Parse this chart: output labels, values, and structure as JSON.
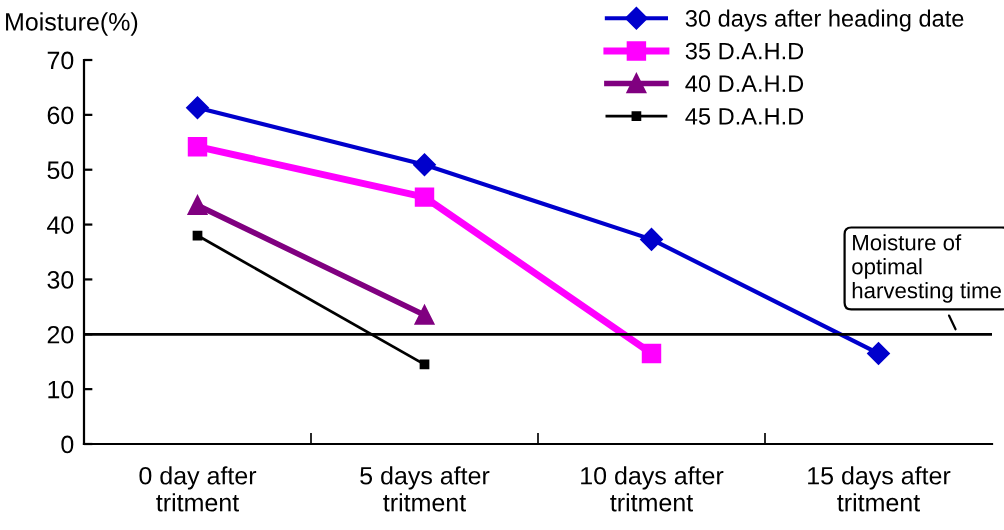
{
  "chart_data": {
    "type": "line",
    "ylabel": "Moisture(%)",
    "categories": [
      "0 day after\ntritment",
      "5 days after\ntritment",
      "10 days after\ntritment",
      "15 days after\ntritment"
    ],
    "series": [
      {
        "name": "30 days after heading date",
        "color": "#0000cc",
        "marker": "diamond",
        "values": [
          61.3,
          50.9,
          37.3,
          16.5
        ]
      },
      {
        "name": "35 D.A.H.D",
        "color": "#ff00ff",
        "marker": "square",
        "values": [
          54.2,
          45,
          16.5,
          null
        ]
      },
      {
        "name": "40 D.A.H.D",
        "color": "#800080",
        "marker": "triangle",
        "values": [
          43.5,
          23.5,
          null,
          null
        ]
      },
      {
        "name": "45 D.A.H.D",
        "color": "#000000",
        "marker": "square",
        "values": [
          38,
          14.5,
          null,
          null
        ]
      }
    ],
    "ylim": [
      0,
      70
    ],
    "yticks": [
      0,
      10,
      20,
      30,
      40,
      50,
      60,
      70
    ],
    "ref_lines": [
      {
        "axis": "y",
        "value": 20,
        "label": "Moisture of\noptimal\nharvesting time",
        "color": "#000000"
      }
    ],
    "grid": false,
    "legend": "top right"
  }
}
